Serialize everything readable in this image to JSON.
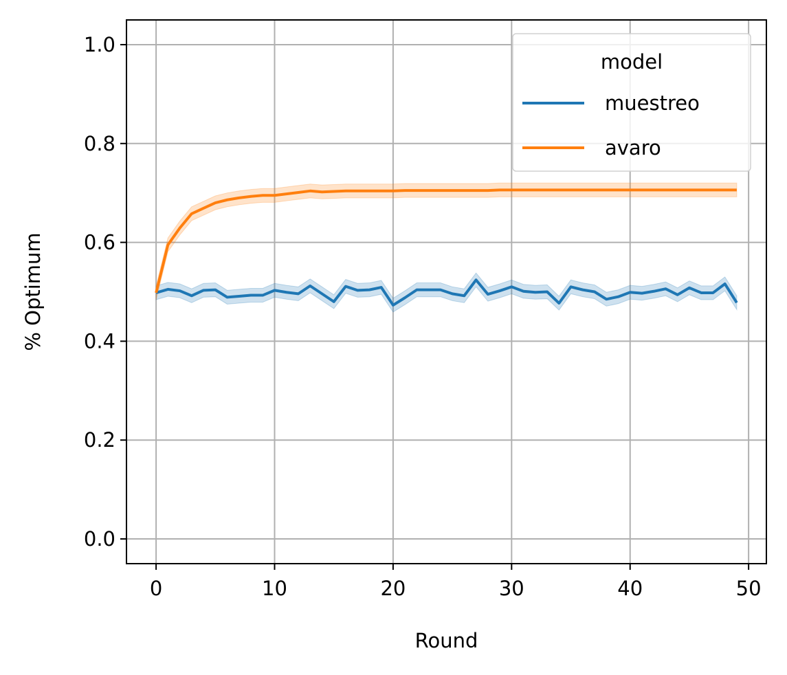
{
  "chart_data": {
    "type": "line",
    "xlabel": "Round",
    "ylabel": "% Optimum",
    "xlim": [
      -2.5,
      51.5
    ],
    "ylim": [
      -0.05,
      1.05
    ],
    "xticks": [
      0,
      10,
      20,
      30,
      40,
      50
    ],
    "xtick_labels": [
      "0",
      "10",
      "20",
      "30",
      "40",
      "50"
    ],
    "yticks": [
      0.0,
      0.2,
      0.4,
      0.6,
      0.8,
      1.0
    ],
    "ytick_labels": [
      "0.0",
      "0.2",
      "0.4",
      "0.6",
      "0.8",
      "1.0"
    ],
    "grid": true,
    "legend": {
      "title": "model",
      "placement": "top-right",
      "entries": [
        "muestreo",
        "avaro"
      ]
    },
    "x": [
      0,
      1,
      2,
      3,
      4,
      5,
      6,
      7,
      8,
      9,
      10,
      11,
      12,
      13,
      14,
      15,
      16,
      17,
      18,
      19,
      20,
      21,
      22,
      23,
      24,
      25,
      26,
      27,
      28,
      29,
      30,
      31,
      32,
      33,
      34,
      35,
      36,
      37,
      38,
      39,
      40,
      41,
      42,
      43,
      44,
      45,
      46,
      47,
      48,
      49
    ],
    "series": [
      {
        "name": "muestreo",
        "color": "#1f77b4",
        "values": [
          0.498,
          0.505,
          0.502,
          0.492,
          0.503,
          0.504,
          0.489,
          0.491,
          0.493,
          0.493,
          0.503,
          0.499,
          0.496,
          0.512,
          0.496,
          0.48,
          0.511,
          0.503,
          0.504,
          0.509,
          0.473,
          0.488,
          0.504,
          0.504,
          0.504,
          0.496,
          0.492,
          0.524,
          0.495,
          0.502,
          0.51,
          0.501,
          0.499,
          0.5,
          0.477,
          0.51,
          0.504,
          0.5,
          0.485,
          0.49,
          0.499,
          0.497,
          0.501,
          0.506,
          0.494,
          0.508,
          0.498,
          0.498,
          0.516,
          0.478
        ],
        "ci_halfwidth": 0.014
      },
      {
        "name": "avaro",
        "color": "#ff7f0e",
        "values": [
          0.498,
          0.595,
          0.629,
          0.658,
          0.669,
          0.68,
          0.686,
          0.69,
          0.693,
          0.695,
          0.695,
          0.698,
          0.701,
          0.704,
          0.702,
          0.703,
          0.704,
          0.704,
          0.704,
          0.704,
          0.704,
          0.705,
          0.705,
          0.705,
          0.705,
          0.705,
          0.705,
          0.705,
          0.705,
          0.706,
          0.706,
          0.706,
          0.706,
          0.706,
          0.706,
          0.706,
          0.706,
          0.706,
          0.706,
          0.706,
          0.706,
          0.706,
          0.706,
          0.706,
          0.706,
          0.706,
          0.706,
          0.706,
          0.706,
          0.706
        ],
        "ci_halfwidth": 0.014
      }
    ]
  }
}
